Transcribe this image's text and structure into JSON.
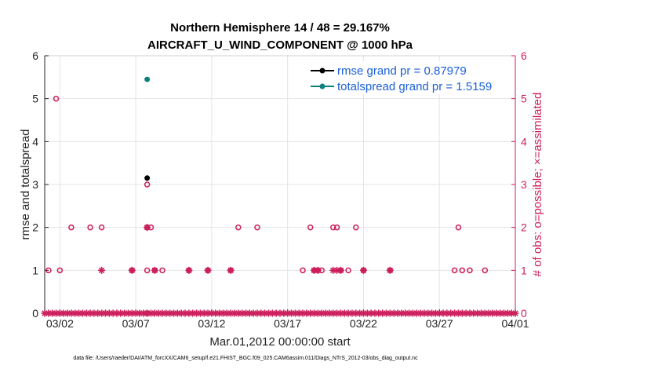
{
  "chart_data": {
    "type": "scatter",
    "title_lines": [
      "Northern Hemisphere 14 / 48 = 29.167%",
      "AIRCRAFT_U_WIND_COMPONENT @ 1000 hPa"
    ],
    "xlabel": "Mar.01,2012 00:00:00 start",
    "ylabel": "rmse and totalspread",
    "ylabel_right": "# of obs: o=possible; ×=assimilated",
    "footnote": "data file: /Users/raeder/DAI/ATM_forcXX/CAM6_setup/f.e21.FHIST_BGC.f09_025.CAM6assim.011/Diags_NTrS_2012-03/obs_diag_output.nc",
    "xlim": [
      1,
      32
    ],
    "ylim": [
      0,
      6
    ],
    "ylim_right": [
      0,
      6
    ],
    "x_ticks": [
      2,
      7,
      12,
      17,
      22,
      27,
      32
    ],
    "x_tick_labels": [
      "03/02",
      "03/07",
      "03/12",
      "03/17",
      "03/22",
      "03/27",
      "04/01"
    ],
    "y_ticks": [
      0,
      1,
      2,
      3,
      4,
      5,
      6
    ],
    "y_tick_labels": [
      "0",
      "1",
      "2",
      "3",
      "4",
      "5",
      "6"
    ],
    "grid": true,
    "legend_position": "top-right",
    "legend": [
      "rmse grand pr = 0.87979",
      "totalspread grand pr = 1.5159"
    ],
    "colors": {
      "rmse": "#000000",
      "totalspread": "#0f8080",
      "obs": "#cc1e5c",
      "legend_text": "#1a5fd6"
    },
    "series": [
      {
        "name": "rmse grand pr = 0.87979",
        "x": [
          7.75
        ],
        "y": [
          3.15
        ]
      },
      {
        "name": "totalspread grand pr = 1.5159",
        "x": [
          7.75
        ],
        "y": [
          5.45
        ]
      }
    ],
    "obs_possible": {
      "x": [
        1.25,
        1.75,
        2.0,
        2.75,
        4.0,
        4.75,
        6.75,
        7.75,
        7.75,
        7.75,
        7.75,
        8.0,
        8.25,
        8.75,
        10.5,
        11.75,
        13.25,
        13.75,
        15.0,
        18.0,
        18.5,
        18.75,
        19.0,
        19.25,
        20.0,
        20.25,
        20.5,
        21.0,
        21.5,
        22.0,
        23.75,
        28.0,
        28.25,
        28.5,
        29.0,
        30.0
      ],
      "y": [
        1,
        5,
        1,
        2,
        2,
        2,
        1,
        3,
        2,
        1,
        0,
        2,
        1,
        1,
        1,
        1,
        1,
        2,
        2,
        1,
        2,
        1,
        1,
        1,
        2,
        2,
        1,
        1,
        2,
        1,
        1,
        1,
        2,
        1,
        1,
        1
      ]
    },
    "obs_assimilated": {
      "x": [
        4.75,
        6.75,
        7.75,
        8.25,
        10.5,
        11.75,
        13.25,
        18.75,
        19.0,
        20.0,
        20.25,
        20.5,
        22.0,
        23.75
      ],
      "y": [
        1,
        1,
        2,
        1,
        1,
        1,
        1,
        1,
        1,
        1,
        1,
        1,
        1,
        1
      ]
    },
    "zero_assimilated_daily_step": 0.25
  }
}
